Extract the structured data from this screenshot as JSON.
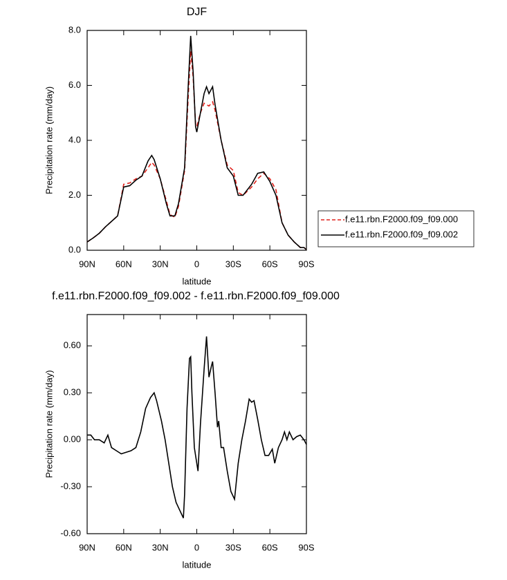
{
  "chart_data": [
    {
      "type": "line",
      "title": "DJF",
      "xlabel": "latitude",
      "ylabel": "Precipitation rate (mm/day)",
      "x": [
        90,
        85,
        80,
        75,
        70,
        65,
        60,
        55,
        50,
        45,
        40,
        37,
        35,
        30,
        25,
        22,
        18,
        15,
        10,
        7,
        5,
        3,
        1,
        0,
        -3,
        -6,
        -8,
        -10,
        -13,
        -15,
        -20,
        -25,
        -30,
        -34,
        -38,
        -45,
        -50,
        -55,
        -60,
        -65,
        -70,
        -75,
        -80,
        -85,
        -88,
        -90
      ],
      "series": [
        {
          "name": "f.e11.rbn.F2000.f09_f09.000",
          "color": "#e0211b",
          "dash": true,
          "values": [
            0.3,
            0.45,
            0.62,
            0.85,
            1.05,
            1.25,
            2.4,
            2.45,
            2.6,
            2.7,
            3.0,
            3.2,
            3.1,
            2.6,
            1.8,
            1.3,
            1.2,
            1.6,
            2.9,
            5.6,
            7.25,
            6.3,
            4.6,
            4.5,
            5.0,
            5.35,
            5.3,
            5.25,
            5.4,
            5.1,
            4.0,
            3.1,
            2.9,
            2.1,
            2.0,
            2.3,
            2.6,
            2.8,
            2.6,
            2.2,
            1.0,
            0.55,
            0.3,
            0.1,
            0.1,
            0.02
          ]
        },
        {
          "name": "f.e11.rbn.F2000.f09_f09.002",
          "color": "#000000",
          "dash": false,
          "values": [
            0.3,
            0.45,
            0.62,
            0.85,
            1.05,
            1.25,
            2.3,
            2.35,
            2.55,
            2.7,
            3.25,
            3.45,
            3.3,
            2.6,
            1.7,
            1.25,
            1.25,
            1.7,
            3.0,
            6.0,
            7.8,
            6.5,
            4.5,
            4.3,
            5.0,
            5.7,
            5.95,
            5.7,
            5.95,
            5.3,
            4.0,
            3.0,
            2.7,
            2.0,
            2.0,
            2.4,
            2.8,
            2.85,
            2.5,
            2.0,
            1.0,
            0.55,
            0.3,
            0.1,
            0.1,
            0.02
          ]
        }
      ],
      "xlim": [
        90,
        -90
      ],
      "xticks": [
        {
          "value": 90,
          "label": "90N"
        },
        {
          "value": 60,
          "label": "60N"
        },
        {
          "value": 30,
          "label": "30N"
        },
        0,
        {
          "value": -30,
          "label": "30S"
        },
        {
          "value": -60,
          "label": "60S"
        },
        {
          "value": -90,
          "label": "90S"
        }
      ],
      "ylim": [
        0,
        8
      ],
      "yticks": [
        {
          "value": 0,
          "label": "0.0"
        },
        {
          "value": 2,
          "label": "2.0"
        },
        {
          "value": 4,
          "label": "4.0"
        },
        {
          "value": 6,
          "label": "6.0"
        },
        {
          "value": 8,
          "label": "8.0"
        }
      ],
      "legend": "right"
    },
    {
      "type": "line",
      "title": "f.e11.rbn.F2000.f09_f09.002 - f.e11.rbn.F2000.f09_f09.000",
      "xlabel": "latitude",
      "ylabel": "Precipitation rate (mm/day)",
      "x": [
        90,
        87,
        84,
        80,
        76,
        73,
        70,
        66,
        62,
        58,
        54,
        50,
        46,
        42,
        38,
        35,
        33,
        29,
        26,
        23,
        20,
        17,
        14,
        11,
        10,
        8,
        6,
        5,
        4,
        2,
        0,
        -1,
        -3,
        -6,
        -8,
        -10,
        -12,
        -13,
        -15,
        -17,
        -18,
        -20,
        -22,
        -25,
        -28,
        -31,
        -34,
        -37,
        -40,
        -43,
        -45,
        -47,
        -50,
        -53,
        -56,
        -59,
        -62,
        -64,
        -67,
        -70,
        -72,
        -74,
        -76,
        -79,
        -82,
        -85,
        -88,
        -90
      ],
      "values": [
        0.03,
        0.03,
        0.0,
        0.0,
        -0.02,
        0.03,
        -0.05,
        -0.07,
        -0.09,
        -0.08,
        -0.07,
        -0.05,
        0.05,
        0.2,
        0.27,
        0.3,
        0.25,
        0.12,
        0.0,
        -0.15,
        -0.3,
        -0.4,
        -0.45,
        -0.5,
        -0.35,
        0.2,
        0.52,
        0.53,
        0.3,
        -0.05,
        -0.15,
        -0.2,
        0.1,
        0.45,
        0.66,
        0.4,
        0.47,
        0.5,
        0.3,
        0.08,
        0.12,
        -0.05,
        -0.05,
        -0.2,
        -0.33,
        -0.38,
        -0.15,
        0.0,
        0.12,
        0.26,
        0.24,
        0.25,
        0.13,
        0.0,
        -0.1,
        -0.1,
        -0.06,
        -0.15,
        -0.05,
        0.0,
        0.05,
        0.0,
        0.05,
        0.0,
        0.02,
        0.03,
        0.0,
        -0.03
      ],
      "color": "#000000",
      "xlim": [
        90,
        -90
      ],
      "xticks": [
        {
          "value": 90,
          "label": "90N"
        },
        {
          "value": 60,
          "label": "60N"
        },
        {
          "value": 30,
          "label": "30N"
        },
        0,
        {
          "value": -30,
          "label": "30S"
        },
        {
          "value": -60,
          "label": "60S"
        },
        {
          "value": -90,
          "label": "90S"
        }
      ],
      "ylim": [
        -0.6,
        0.8
      ],
      "yticks": [
        {
          "value": -0.6,
          "label": "-0.60"
        },
        {
          "value": -0.3,
          "label": "-0.30"
        },
        {
          "value": 0,
          "label": "0.00"
        },
        {
          "value": 0.3,
          "label": "0.30"
        },
        {
          "value": 0.6,
          "label": "0.60"
        }
      ]
    }
  ]
}
